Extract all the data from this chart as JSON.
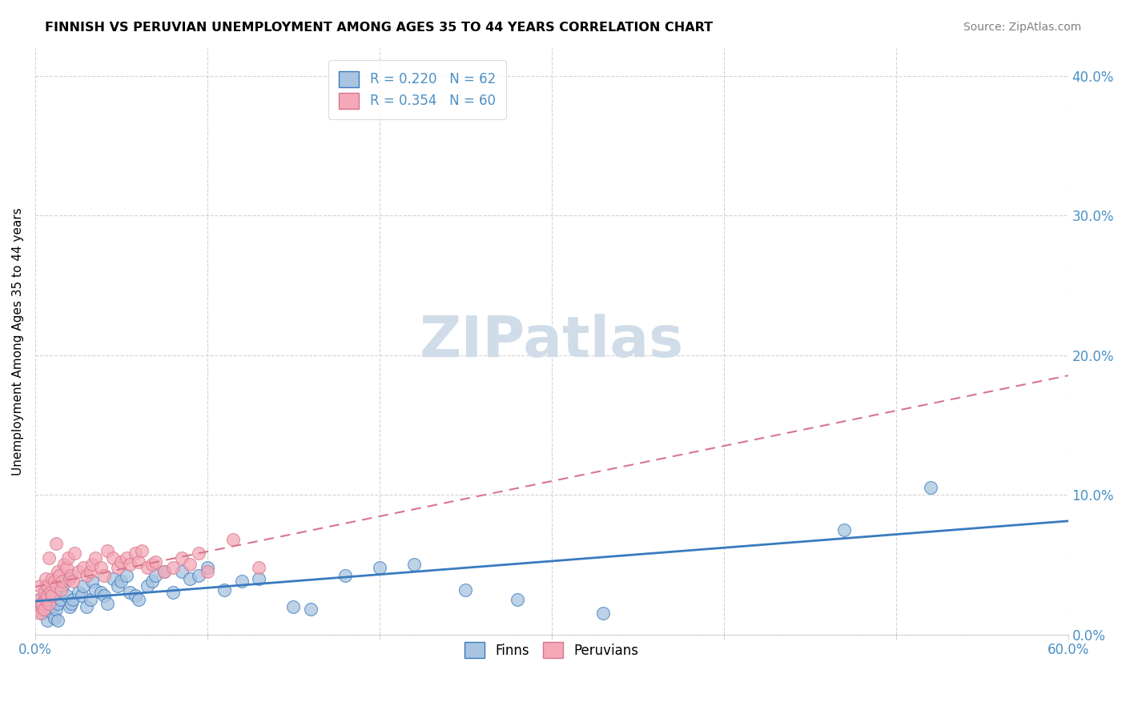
{
  "title": "FINNISH VS PERUVIAN UNEMPLOYMENT AMONG AGES 35 TO 44 YEARS CORRELATION CHART",
  "source": "Source: ZipAtlas.com",
  "ylabel": "Unemployment Among Ages 35 to 44 years",
  "xlim": [
    0.0,
    0.6
  ],
  "ylim": [
    0.0,
    0.42
  ],
  "finn_R": 0.22,
  "finn_N": 62,
  "peru_R": 0.354,
  "peru_N": 60,
  "finn_color": "#a8c4e0",
  "peru_color": "#f4a8b8",
  "finn_line_color": "#3a7abf",
  "peru_line_color": "#d9758a",
  "watermark_color": "#d0dde8",
  "finn_x": [
    0.002,
    0.003,
    0.004,
    0.005,
    0.005,
    0.006,
    0.006,
    0.007,
    0.008,
    0.008,
    0.01,
    0.01,
    0.011,
    0.012,
    0.013,
    0.013,
    0.015,
    0.016,
    0.018,
    0.018,
    0.02,
    0.021,
    0.022,
    0.025,
    0.027,
    0.028,
    0.03,
    0.032,
    0.033,
    0.035,
    0.038,
    0.04,
    0.042,
    0.045,
    0.048,
    0.05,
    0.053,
    0.055,
    0.058,
    0.06,
    0.065,
    0.068,
    0.07,
    0.075,
    0.08,
    0.085,
    0.09,
    0.095,
    0.1,
    0.11,
    0.12,
    0.13,
    0.15,
    0.16,
    0.18,
    0.2,
    0.22,
    0.25,
    0.28,
    0.33,
    0.47,
    0.52
  ],
  "finn_y": [
    0.02,
    0.025,
    0.015,
    0.018,
    0.022,
    0.02,
    0.03,
    0.01,
    0.025,
    0.028,
    0.02,
    0.015,
    0.012,
    0.018,
    0.01,
    0.022,
    0.025,
    0.035,
    0.04,
    0.028,
    0.02,
    0.022,
    0.025,
    0.03,
    0.028,
    0.035,
    0.02,
    0.025,
    0.038,
    0.032,
    0.03,
    0.028,
    0.022,
    0.04,
    0.035,
    0.038,
    0.042,
    0.03,
    0.028,
    0.025,
    0.035,
    0.038,
    0.042,
    0.045,
    0.03,
    0.045,
    0.04,
    0.042,
    0.048,
    0.032,
    0.038,
    0.04,
    0.02,
    0.018,
    0.042,
    0.048,
    0.05,
    0.032,
    0.025,
    0.015,
    0.075,
    0.105
  ],
  "peru_x": [
    0.001,
    0.002,
    0.002,
    0.003,
    0.003,
    0.004,
    0.004,
    0.005,
    0.005,
    0.006,
    0.006,
    0.007,
    0.007,
    0.008,
    0.008,
    0.009,
    0.01,
    0.01,
    0.011,
    0.012,
    0.012,
    0.013,
    0.014,
    0.015,
    0.016,
    0.017,
    0.018,
    0.019,
    0.02,
    0.021,
    0.022,
    0.023,
    0.025,
    0.028,
    0.03,
    0.032,
    0.033,
    0.035,
    0.038,
    0.04,
    0.042,
    0.045,
    0.048,
    0.05,
    0.053,
    0.055,
    0.058,
    0.06,
    0.062,
    0.065,
    0.068,
    0.07,
    0.075,
    0.08,
    0.085,
    0.09,
    0.095,
    0.1,
    0.115,
    0.13
  ],
  "peru_y": [
    0.018,
    0.02,
    0.025,
    0.015,
    0.035,
    0.02,
    0.022,
    0.018,
    0.03,
    0.025,
    0.04,
    0.035,
    0.028,
    0.022,
    0.055,
    0.03,
    0.028,
    0.04,
    0.038,
    0.035,
    0.065,
    0.045,
    0.042,
    0.032,
    0.038,
    0.05,
    0.048,
    0.055,
    0.04,
    0.042,
    0.038,
    0.058,
    0.045,
    0.048,
    0.042,
    0.045,
    0.05,
    0.055,
    0.048,
    0.042,
    0.06,
    0.055,
    0.048,
    0.052,
    0.055,
    0.05,
    0.058,
    0.052,
    0.06,
    0.048,
    0.05,
    0.052,
    0.045,
    0.048,
    0.055,
    0.05,
    0.058,
    0.045,
    0.068,
    0.048
  ]
}
